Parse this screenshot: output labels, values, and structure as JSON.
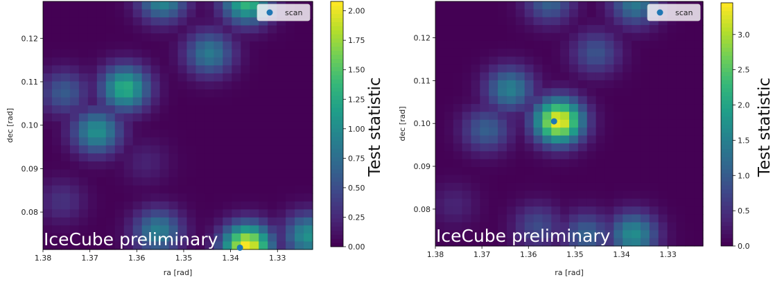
{
  "chart_data": [
    {
      "type": "heatmap",
      "xlabel": "ra [rad]",
      "ylabel": "dec [rad]",
      "x_ticks": [
        "1.38",
        "1.37",
        "1.36",
        "1.35",
        "1.34",
        "1.33"
      ],
      "y_ticks": [
        "0.12",
        "0.11",
        "0.10",
        "0.09",
        "0.08"
      ],
      "xlim": [
        1.38,
        1.3225
      ],
      "ylim": [
        0.0714,
        0.1285
      ],
      "colorbar_label": "Test statistic",
      "colorbar_ticks": [
        "0.00",
        "0.25",
        "0.50",
        "0.75",
        "1.00",
        "1.25",
        "1.50",
        "1.75",
        "2.00"
      ],
      "colorbar_range": [
        0,
        2.08
      ],
      "colormap": "viridis",
      "watermark": "IceCube preliminary",
      "legend": {
        "label": "scan",
        "placement": "top-right"
      },
      "scan_point": {
        "ra": 1.338,
        "dec": 0.0718
      },
      "blobs": [
        {
          "ra": 1.3625,
          "dec": 0.1085,
          "peak": 1.3
        },
        {
          "ra": 1.3685,
          "dec": 0.0985,
          "peak": 1.05
        },
        {
          "ra": 1.3755,
          "dec": 0.1075,
          "peak": 0.6
        },
        {
          "ra": 1.3445,
          "dec": 0.1165,
          "peak": 0.85
        },
        {
          "ra": 1.3545,
          "dec": 0.129,
          "peak": 1.0
        },
        {
          "ra": 1.3365,
          "dec": 0.1285,
          "peak": 1.4
        },
        {
          "ra": 1.3365,
          "dec": 0.072,
          "peak": 2.08
        },
        {
          "ra": 1.3555,
          "dec": 0.0755,
          "peak": 0.9
        },
        {
          "ra": 1.3235,
          "dec": 0.0745,
          "peak": 1.05
        },
        {
          "ra": 1.376,
          "dec": 0.0825,
          "peak": 0.3
        },
        {
          "ra": 1.358,
          "dec": 0.0915,
          "peak": 0.2
        }
      ]
    },
    {
      "type": "heatmap",
      "xlabel": "ra [rad]",
      "ylabel": "dec [rad]",
      "x_ticks": [
        "1.38",
        "1.37",
        "1.36",
        "1.35",
        "1.34",
        "1.33"
      ],
      "y_ticks": [
        "0.12",
        "0.11",
        "0.10",
        "0.09",
        "0.08"
      ],
      "xlim": [
        1.38,
        1.3225
      ],
      "ylim": [
        0.0714,
        0.1285
      ],
      "colorbar_label": "Test statistic",
      "colorbar_ticks": [
        "0.0",
        "0.5",
        "1.0",
        "1.5",
        "2.0",
        "2.5",
        "3.0"
      ],
      "colorbar_range": [
        0,
        3.45
      ],
      "colormap": "viridis",
      "watermark": "IceCube preliminary",
      "legend": {
        "label": "scan",
        "placement": "top-right"
      },
      "scan_point": {
        "ra": 1.3545,
        "dec": 0.1005
      },
      "blobs": [
        {
          "ra": 1.3535,
          "dec": 0.1005,
          "peak": 3.45
        },
        {
          "ra": 1.364,
          "dec": 0.108,
          "peak": 1.5
        },
        {
          "ra": 1.369,
          "dec": 0.0985,
          "peak": 1.05
        },
        {
          "ra": 1.3455,
          "dec": 0.1165,
          "peak": 0.9
        },
        {
          "ra": 1.3555,
          "dec": 0.1285,
          "peak": 1.1
        },
        {
          "ra": 1.337,
          "dec": 0.128,
          "peak": 1.4
        },
        {
          "ra": 1.3375,
          "dec": 0.074,
          "peak": 1.7
        },
        {
          "ra": 1.3475,
          "dec": 0.074,
          "peak": 1.1
        },
        {
          "ra": 1.358,
          "dec": 0.076,
          "peak": 0.8
        },
        {
          "ra": 1.376,
          "dec": 0.081,
          "peak": 0.35
        }
      ]
    }
  ]
}
